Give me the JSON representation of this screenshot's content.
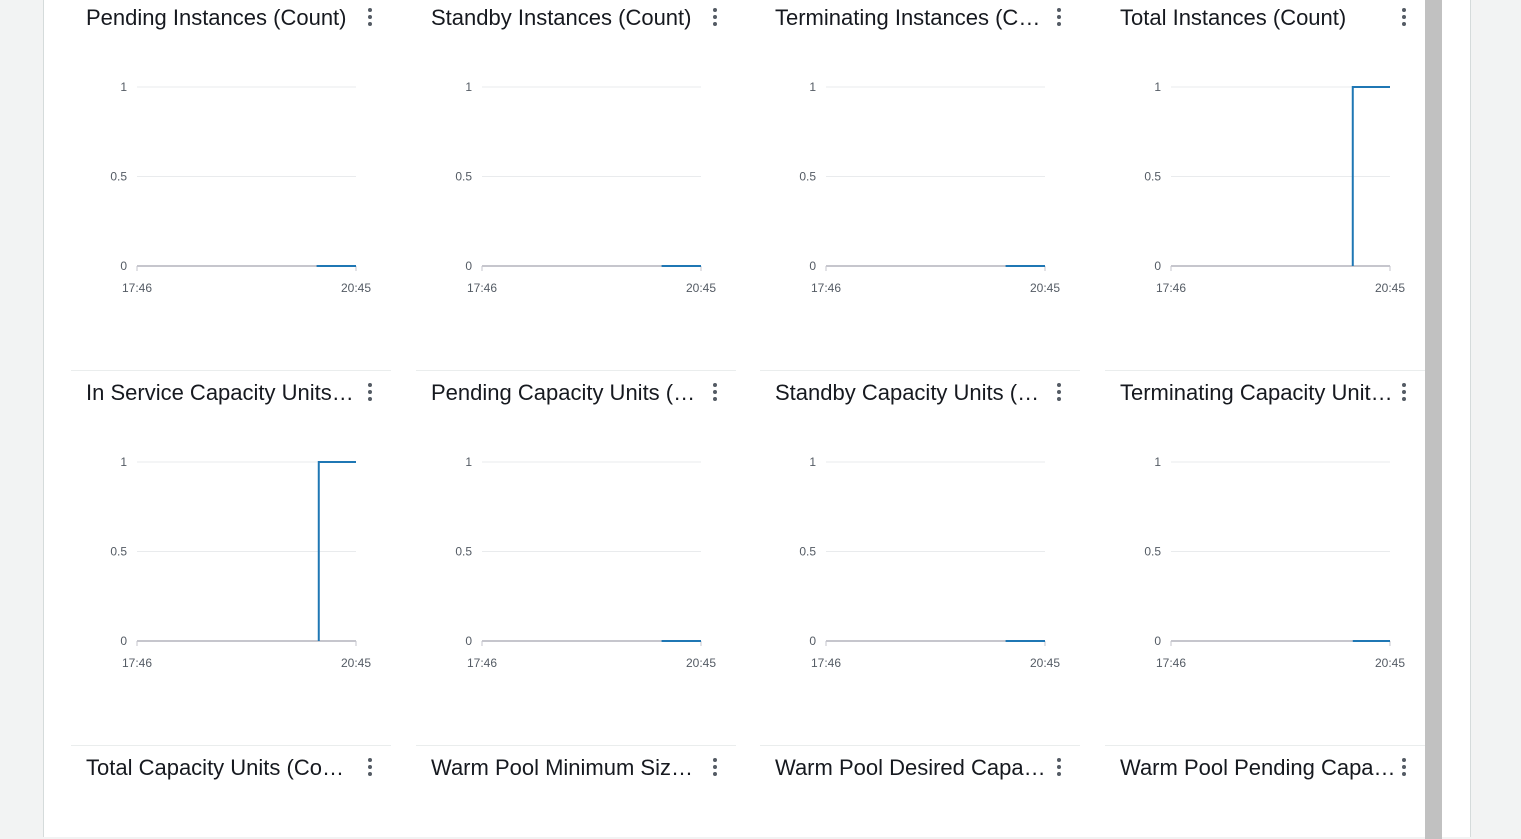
{
  "colors": {
    "series": "#1f77b4",
    "grid": "#e9ebed",
    "axis": "#c6c6cd",
    "text": "#16191f"
  },
  "icons": {
    "widget_menu": "vertical-ellipsis-icon"
  },
  "widgets": [
    {
      "title": "Pending Instances (Count)",
      "points": [
        [
          0.82,
          0
        ],
        [
          1,
          0
        ]
      ]
    },
    {
      "title": "Standby Instances (Count)",
      "points": [
        [
          0.82,
          0
        ],
        [
          1,
          0
        ]
      ]
    },
    {
      "title": "Terminating Instances (Count)",
      "points": [
        [
          0.82,
          0
        ],
        [
          1,
          0
        ]
      ]
    },
    {
      "title": "Total Instances (Count)",
      "points": [
        [
          0.83,
          0
        ],
        [
          0.83,
          1
        ],
        [
          1,
          1
        ]
      ]
    },
    {
      "title": "In Service Capacity Units (Count)",
      "points": [
        [
          0.83,
          0
        ],
        [
          0.83,
          1
        ],
        [
          1,
          1
        ]
      ]
    },
    {
      "title": "Pending Capacity Units (Count)",
      "points": [
        [
          0.82,
          0
        ],
        [
          1,
          0
        ]
      ]
    },
    {
      "title": "Standby Capacity Units (Count)",
      "points": [
        [
          0.82,
          0
        ],
        [
          1,
          0
        ]
      ]
    },
    {
      "title": "Terminating Capacity Units (Count)",
      "points": [
        [
          0.83,
          0
        ],
        [
          1,
          0
        ]
      ]
    },
    {
      "title": "Total Capacity Units (Count)",
      "points": []
    },
    {
      "title": "Warm Pool Minimum Size (Count)",
      "points": []
    },
    {
      "title": "Warm Pool Desired Capacity (Count)",
      "points": []
    },
    {
      "title": "Warm Pool Pending Capacity (Count)",
      "points": []
    }
  ],
  "chart_data": [
    {
      "type": "line",
      "title": "Pending Instances (Count)",
      "x": [
        "17:46",
        "20:45"
      ],
      "y_ticks": [
        "0",
        "0.5",
        "1"
      ],
      "ylim": [
        0,
        1
      ],
      "series": [
        {
          "points": [
            [
              0.82,
              0
            ],
            [
              1,
              0
            ]
          ]
        }
      ]
    },
    {
      "type": "line",
      "title": "Standby Instances (Count)",
      "x": [
        "17:46",
        "20:45"
      ],
      "y_ticks": [
        "0",
        "0.5",
        "1"
      ],
      "ylim": [
        0,
        1
      ],
      "series": [
        {
          "points": [
            [
              0.82,
              0
            ],
            [
              1,
              0
            ]
          ]
        }
      ]
    },
    {
      "type": "line",
      "title": "Terminating Instances (Count)",
      "x": [
        "17:46",
        "20:45"
      ],
      "y_ticks": [
        "0",
        "0.5",
        "1"
      ],
      "ylim": [
        0,
        1
      ],
      "series": [
        {
          "points": [
            [
              0.82,
              0
            ],
            [
              1,
              0
            ]
          ]
        }
      ]
    },
    {
      "type": "line",
      "title": "Total Instances (Count)",
      "x": [
        "17:46",
        "20:45"
      ],
      "y_ticks": [
        "0",
        "0.5",
        "1"
      ],
      "ylim": [
        0,
        1
      ],
      "series": [
        {
          "points": [
            [
              0.83,
              0
            ],
            [
              0.83,
              1
            ],
            [
              1,
              1
            ]
          ]
        }
      ]
    },
    {
      "type": "line",
      "title": "In Service Capacity Units (Count)",
      "x": [
        "17:46",
        "20:45"
      ],
      "y_ticks": [
        "0",
        "0.5",
        "1"
      ],
      "ylim": [
        0,
        1
      ],
      "series": [
        {
          "points": [
            [
              0.83,
              0
            ],
            [
              0.83,
              1
            ],
            [
              1,
              1
            ]
          ]
        }
      ]
    },
    {
      "type": "line",
      "title": "Pending Capacity Units (Count)",
      "x": [
        "17:46",
        "20:45"
      ],
      "y_ticks": [
        "0",
        "0.5",
        "1"
      ],
      "ylim": [
        0,
        1
      ],
      "series": [
        {
          "points": [
            [
              0.82,
              0
            ],
            [
              1,
              0
            ]
          ]
        }
      ]
    },
    {
      "type": "line",
      "title": "Standby Capacity Units (Count)",
      "x": [
        "17:46",
        "20:45"
      ],
      "y_ticks": [
        "0",
        "0.5",
        "1"
      ],
      "ylim": [
        0,
        1
      ],
      "series": [
        {
          "points": [
            [
              0.82,
              0
            ],
            [
              1,
              0
            ]
          ]
        }
      ]
    },
    {
      "type": "line",
      "title": "Terminating Capacity Units (Count)",
      "x": [
        "17:46",
        "20:45"
      ],
      "y_ticks": [
        "0",
        "0.5",
        "1"
      ],
      "ylim": [
        0,
        1
      ],
      "series": [
        {
          "points": [
            [
              0.83,
              0
            ],
            [
              1,
              0
            ]
          ]
        }
      ]
    }
  ],
  "axis": {
    "x_ticks": [
      "17:46",
      "20:45"
    ],
    "y_ticks": [
      "0",
      "0.5",
      "1"
    ]
  }
}
